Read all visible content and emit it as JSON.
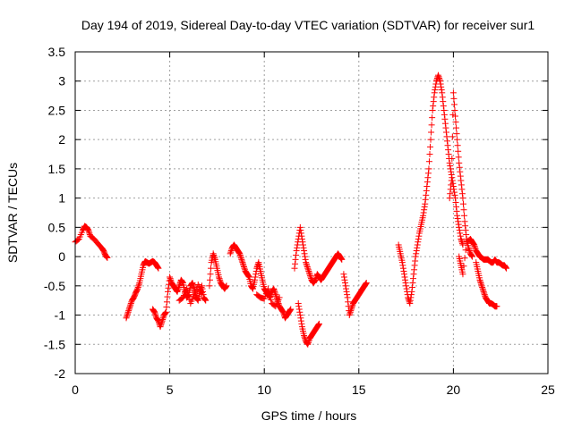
{
  "chart_data": {
    "type": "scatter",
    "title": "Day 194 of 2019, Sidereal Day-to-day VTEC variation (SDTVAR) for receiver sur1",
    "xlabel": "GPS time / hours",
    "ylabel": "SDTVAR / TECUs",
    "xlim": [
      0,
      25
    ],
    "ylim": [
      -2,
      3.5
    ],
    "xticks": [
      0,
      5,
      10,
      15,
      20,
      25
    ],
    "xtick_labels": [
      "0",
      "5",
      "10",
      "15",
      "20",
      "25"
    ],
    "yticks": [
      -2,
      -1.5,
      -1,
      -0.5,
      0,
      0.5,
      1,
      1.5,
      2,
      2.5,
      3,
      3.5
    ],
    "ytick_labels": [
      "-2",
      "-1.5",
      "-1",
      "-0.5",
      "0",
      "0.5",
      "1",
      "1.5",
      "2",
      "2.5",
      "3",
      "3.5"
    ],
    "grid": true,
    "marker": "+",
    "color": "#ff0000",
    "series": [
      {
        "name": "SDTVAR",
        "segments": [
          [
            [
              0.0,
              0.25
            ],
            [
              0.2,
              0.3
            ],
            [
              0.4,
              0.45
            ],
            [
              0.5,
              0.52
            ],
            [
              0.6,
              0.5
            ],
            [
              0.7,
              0.45
            ],
            [
              0.8,
              0.35
            ],
            [
              1.0,
              0.3
            ],
            [
              1.2,
              0.22
            ],
            [
              1.4,
              0.15
            ],
            [
              1.5,
              0.1
            ],
            [
              1.6,
              0.02
            ],
            [
              1.7,
              -0.02
            ]
          ],
          [
            [
              2.7,
              -1.05
            ],
            [
              2.8,
              -0.95
            ],
            [
              2.9,
              -0.85
            ],
            [
              3.0,
              -0.75
            ],
            [
              3.1,
              -0.7
            ],
            [
              3.2,
              -0.62
            ],
            [
              3.3,
              -0.55
            ],
            [
              3.4,
              -0.45
            ],
            [
              3.5,
              -0.3
            ],
            [
              3.6,
              -0.15
            ],
            [
              3.7,
              -0.08
            ],
            [
              3.8,
              -0.1
            ],
            [
              3.9,
              -0.12
            ],
            [
              4.0,
              -0.1
            ],
            [
              4.1,
              -0.08
            ],
            [
              4.2,
              -0.1
            ],
            [
              4.3,
              -0.15
            ],
            [
              4.4,
              -0.2
            ]
          ],
          [
            [
              4.1,
              -0.9
            ],
            [
              4.2,
              -0.95
            ],
            [
              4.3,
              -1.05
            ],
            [
              4.4,
              -1.1
            ],
            [
              4.5,
              -1.2
            ],
            [
              4.6,
              -1.1
            ],
            [
              4.7,
              -1.0
            ],
            [
              4.8,
              -0.95
            ],
            [
              4.9,
              -0.6
            ],
            [
              5.0,
              -0.35
            ],
            [
              5.1,
              -0.45
            ],
            [
              5.2,
              -0.5
            ],
            [
              5.3,
              -0.55
            ],
            [
              5.4,
              -0.6
            ],
            [
              5.5,
              -0.5
            ],
            [
              5.6,
              -0.4
            ],
            [
              5.7,
              -0.45
            ],
            [
              5.8,
              -0.6
            ],
            [
              5.9,
              -0.7
            ],
            [
              6.0,
              -0.65
            ],
            [
              6.1,
              -0.5
            ],
            [
              6.2,
              -0.45
            ],
            [
              6.3,
              -0.55
            ],
            [
              6.4,
              -0.7
            ],
            [
              6.5,
              -0.75
            ],
            [
              6.6,
              -0.6
            ],
            [
              6.7,
              -0.5
            ],
            [
              6.8,
              -0.7
            ],
            [
              6.9,
              -0.75
            ]
          ],
          [
            [
              5.5,
              -0.75
            ],
            [
              5.7,
              -0.7
            ],
            [
              5.9,
              -0.55
            ],
            [
              6.1,
              -0.8
            ],
            [
              6.3,
              -0.65
            ],
            [
              6.5,
              -0.48
            ],
            [
              6.7,
              -0.62
            ]
          ],
          [
            [
              7.1,
              -0.5
            ],
            [
              7.2,
              -0.1
            ],
            [
              7.3,
              0.05
            ],
            [
              7.4,
              -0.05
            ],
            [
              7.5,
              -0.2
            ],
            [
              7.6,
              -0.35
            ],
            [
              7.7,
              -0.45
            ],
            [
              7.8,
              -0.5
            ],
            [
              7.9,
              -0.55
            ],
            [
              8.0,
              -0.5
            ]
          ],
          [
            [
              8.2,
              0.05
            ],
            [
              8.3,
              0.15
            ],
            [
              8.4,
              0.2
            ],
            [
              8.5,
              0.15
            ],
            [
              8.6,
              0.1
            ],
            [
              8.7,
              0.05
            ],
            [
              8.8,
              -0.05
            ],
            [
              8.9,
              -0.15
            ],
            [
              9.0,
              -0.25
            ],
            [
              9.1,
              -0.3
            ],
            [
              9.2,
              -0.35
            ],
            [
              9.3,
              -0.5
            ],
            [
              9.4,
              -0.55
            ],
            [
              9.5,
              -0.4
            ],
            [
              9.6,
              -0.2
            ],
            [
              9.7,
              -0.1
            ],
            [
              9.8,
              -0.25
            ],
            [
              9.9,
              -0.4
            ],
            [
              10.0,
              -0.55
            ],
            [
              10.1,
              -0.6
            ],
            [
              10.2,
              -0.65
            ],
            [
              10.3,
              -0.7
            ],
            [
              10.4,
              -0.6
            ],
            [
              10.5,
              -0.55
            ],
            [
              10.6,
              -0.65
            ],
            [
              10.7,
              -0.75
            ],
            [
              10.8,
              -0.85
            ],
            [
              10.9,
              -0.9
            ],
            [
              11.0,
              -0.95
            ],
            [
              11.1,
              -1.05
            ],
            [
              11.2,
              -1.0
            ],
            [
              11.3,
              -0.95
            ],
            [
              11.4,
              -0.9
            ]
          ],
          [
            [
              9.6,
              -0.65
            ],
            [
              9.8,
              -0.7
            ],
            [
              10.0,
              -0.72
            ],
            [
              10.2,
              -0.55
            ],
            [
              10.4,
              -0.8
            ],
            [
              10.6,
              -0.85
            ],
            [
              10.8,
              -0.7
            ]
          ],
          [
            [
              11.6,
              -0.2
            ],
            [
              11.7,
              0.1
            ],
            [
              11.8,
              0.3
            ],
            [
              11.9,
              0.5
            ],
            [
              12.0,
              0.3
            ],
            [
              12.1,
              0.1
            ],
            [
              12.2,
              -0.1
            ],
            [
              12.3,
              -0.2
            ],
            [
              12.4,
              -0.3
            ],
            [
              12.5,
              -0.4
            ],
            [
              12.6,
              -0.45
            ],
            [
              12.7,
              -0.4
            ],
            [
              12.8,
              -0.3
            ],
            [
              12.9,
              -0.35
            ],
            [
              13.0,
              -0.4
            ],
            [
              13.1,
              -0.35
            ],
            [
              13.2,
              -0.3
            ],
            [
              13.3,
              -0.25
            ],
            [
              13.4,
              -0.2
            ],
            [
              13.5,
              -0.15
            ],
            [
              13.6,
              -0.1
            ],
            [
              13.7,
              -0.05
            ],
            [
              13.8,
              0.0
            ],
            [
              13.9,
              0.05
            ],
            [
              14.0,
              0.0
            ],
            [
              14.1,
              -0.05
            ]
          ],
          [
            [
              11.8,
              -0.8
            ],
            [
              11.9,
              -1.0
            ],
            [
              12.0,
              -1.2
            ],
            [
              12.1,
              -1.35
            ],
            [
              12.2,
              -1.45
            ],
            [
              12.3,
              -1.5
            ],
            [
              12.4,
              -1.4
            ],
            [
              12.5,
              -1.35
            ],
            [
              12.6,
              -1.3
            ],
            [
              12.7,
              -1.25
            ],
            [
              12.8,
              -1.2
            ],
            [
              12.9,
              -1.15
            ]
          ],
          [
            [
              14.2,
              -0.3
            ],
            [
              14.3,
              -0.5
            ],
            [
              14.4,
              -0.7
            ],
            [
              14.5,
              -1.0
            ],
            [
              14.6,
              -0.9
            ],
            [
              14.7,
              -0.8
            ],
            [
              14.8,
              -0.75
            ],
            [
              14.9,
              -0.7
            ],
            [
              15.0,
              -0.65
            ],
            [
              15.1,
              -0.6
            ],
            [
              15.2,
              -0.55
            ],
            [
              15.3,
              -0.5
            ],
            [
              15.4,
              -0.45
            ]
          ],
          [
            [
              17.1,
              0.2
            ],
            [
              17.2,
              0.05
            ],
            [
              17.3,
              -0.1
            ],
            [
              17.4,
              -0.3
            ],
            [
              17.5,
              -0.5
            ],
            [
              17.6,
              -0.7
            ],
            [
              17.7,
              -0.8
            ],
            [
              17.8,
              -0.6
            ],
            [
              17.9,
              -0.3
            ],
            [
              18.0,
              0.0
            ],
            [
              18.1,
              0.2
            ],
            [
              18.2,
              0.4
            ],
            [
              18.3,
              0.55
            ],
            [
              18.4,
              0.7
            ],
            [
              18.5,
              0.9
            ],
            [
              18.6,
              1.2
            ],
            [
              18.7,
              1.5
            ],
            [
              18.8,
              2.0
            ],
            [
              18.9,
              2.5
            ],
            [
              19.0,
              2.8
            ],
            [
              19.1,
              3.0
            ],
            [
              19.2,
              3.1
            ],
            [
              19.3,
              3.0
            ],
            [
              19.4,
              2.8
            ],
            [
              19.5,
              2.5
            ],
            [
              19.6,
              2.2
            ],
            [
              19.7,
              1.9
            ],
            [
              19.8,
              1.6
            ],
            [
              19.9,
              1.4
            ],
            [
              20.0,
              1.2
            ],
            [
              20.1,
              1.0
            ],
            [
              20.2,
              0.7
            ],
            [
              20.3,
              0.5
            ],
            [
              20.4,
              0.3
            ],
            [
              20.5,
              0.2
            ]
          ],
          [
            [
              19.8,
              1.0
            ],
            [
              19.9,
              1.3
            ],
            [
              20.0,
              2.8
            ],
            [
              20.1,
              2.4
            ],
            [
              20.2,
              2.0
            ],
            [
              20.3,
              1.6
            ],
            [
              20.4,
              1.3
            ],
            [
              20.5,
              1.0
            ],
            [
              20.6,
              0.6
            ],
            [
              20.7,
              0.3
            ],
            [
              20.8,
              0.15
            ],
            [
              20.9,
              0.05
            ],
            [
              21.0,
              0.0
            ]
          ],
          [
            [
              20.3,
              0.0
            ],
            [
              20.4,
              -0.15
            ],
            [
              20.5,
              -0.3
            ],
            [
              20.7,
              0.25
            ],
            [
              20.9,
              0.3
            ],
            [
              21.0,
              0.25
            ],
            [
              21.1,
              0.2
            ],
            [
              21.2,
              0.1
            ],
            [
              21.3,
              0.05
            ],
            [
              21.4,
              0.0
            ],
            [
              21.5,
              -0.02
            ],
            [
              21.6,
              -0.05
            ],
            [
              21.7,
              -0.05
            ],
            [
              21.8,
              -0.05
            ],
            [
              21.9,
              -0.07
            ],
            [
              22.0,
              -0.1
            ],
            [
              22.1,
              -0.1
            ],
            [
              22.2,
              -0.05
            ],
            [
              22.3,
              -0.1
            ],
            [
              22.4,
              -0.1
            ],
            [
              22.5,
              -0.12
            ],
            [
              22.6,
              -0.15
            ],
            [
              22.7,
              -0.15
            ],
            [
              22.8,
              -0.2
            ]
          ],
          [
            [
              21.2,
              -0.1
            ],
            [
              21.3,
              -0.25
            ],
            [
              21.4,
              -0.4
            ],
            [
              21.5,
              -0.5
            ],
            [
              21.6,
              -0.6
            ],
            [
              21.7,
              -0.7
            ],
            [
              21.8,
              -0.75
            ],
            [
              21.9,
              -0.8
            ],
            [
              22.0,
              -0.8
            ],
            [
              22.1,
              -0.82
            ],
            [
              22.2,
              -0.85
            ],
            [
              22.3,
              -0.85
            ]
          ]
        ]
      }
    ]
  }
}
